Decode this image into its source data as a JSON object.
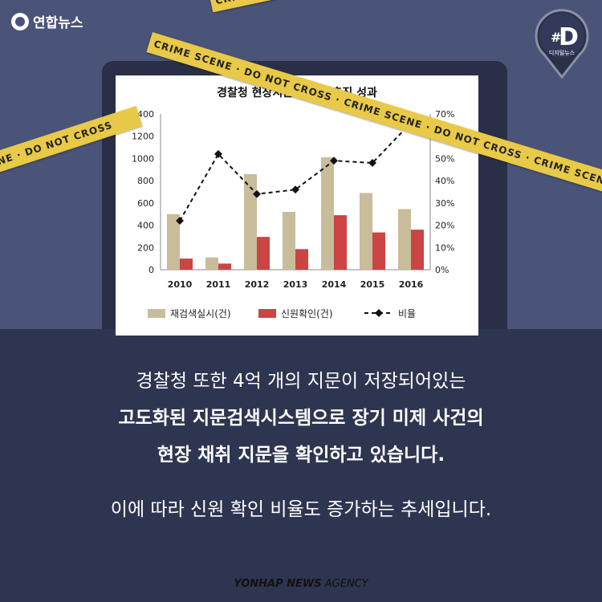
{
  "brand": {
    "logo_text": "연합뉴스",
    "badge_hash": "#",
    "badge_letter": "D",
    "badge_sub": "디지털뉴스"
  },
  "tape": {
    "text": "CRIME SCENE · DO NOT CROSS · CRIME SCENE · DO NOT CROSS · CRIME SCENE · DO NOT CROSS · CRIME SCENE",
    "short_text": "SCENE · DO NOT CROSS"
  },
  "chart_data": {
    "type": "bar",
    "title": "경찰청 현장지문 재검색 추진 성과",
    "categories": [
      "2010",
      "2011",
      "2012",
      "2013",
      "2014",
      "2015",
      "2016"
    ],
    "series": [
      {
        "name": "재검색실시(건)",
        "kind": "bar",
        "color": "#c8bc9b",
        "values": [
          500,
          110,
          860,
          520,
          1010,
          690,
          545
        ]
      },
      {
        "name": "신원확인(건)",
        "kind": "bar",
        "color": "#cc4444",
        "values": [
          100,
          55,
          295,
          185,
          490,
          335,
          360
        ]
      },
      {
        "name": "비율",
        "kind": "line",
        "axis": "right",
        "color": "#111111",
        "values": [
          22,
          52,
          34,
          36,
          49,
          48,
          66
        ]
      }
    ],
    "y_left": {
      "min": 0,
      "max": 1400,
      "ticks": [
        "0",
        "200",
        "400",
        "600",
        "800",
        "1000",
        "1200",
        "1400"
      ]
    },
    "y_right": {
      "min": 0,
      "max": 70,
      "ticks": [
        "0%",
        "10%",
        "20%",
        "30%",
        "40%",
        "50%",
        "60%",
        "70%"
      ]
    },
    "legend_position": "bottom",
    "grid": false
  },
  "body": {
    "line1": "경찰청 또한 4억 개의 지문이 저장되어있는",
    "line2": "고도화된 지문검색시스템으로 장기 미제 사건의",
    "line3": "현장 채취 지문을 확인하고 있습니다.",
    "line4": "이에 따라 신원 확인 비율도 증가하는 추세입니다."
  },
  "footer": {
    "bold": "YONHAP NEWS",
    "light": "AGENCY"
  }
}
